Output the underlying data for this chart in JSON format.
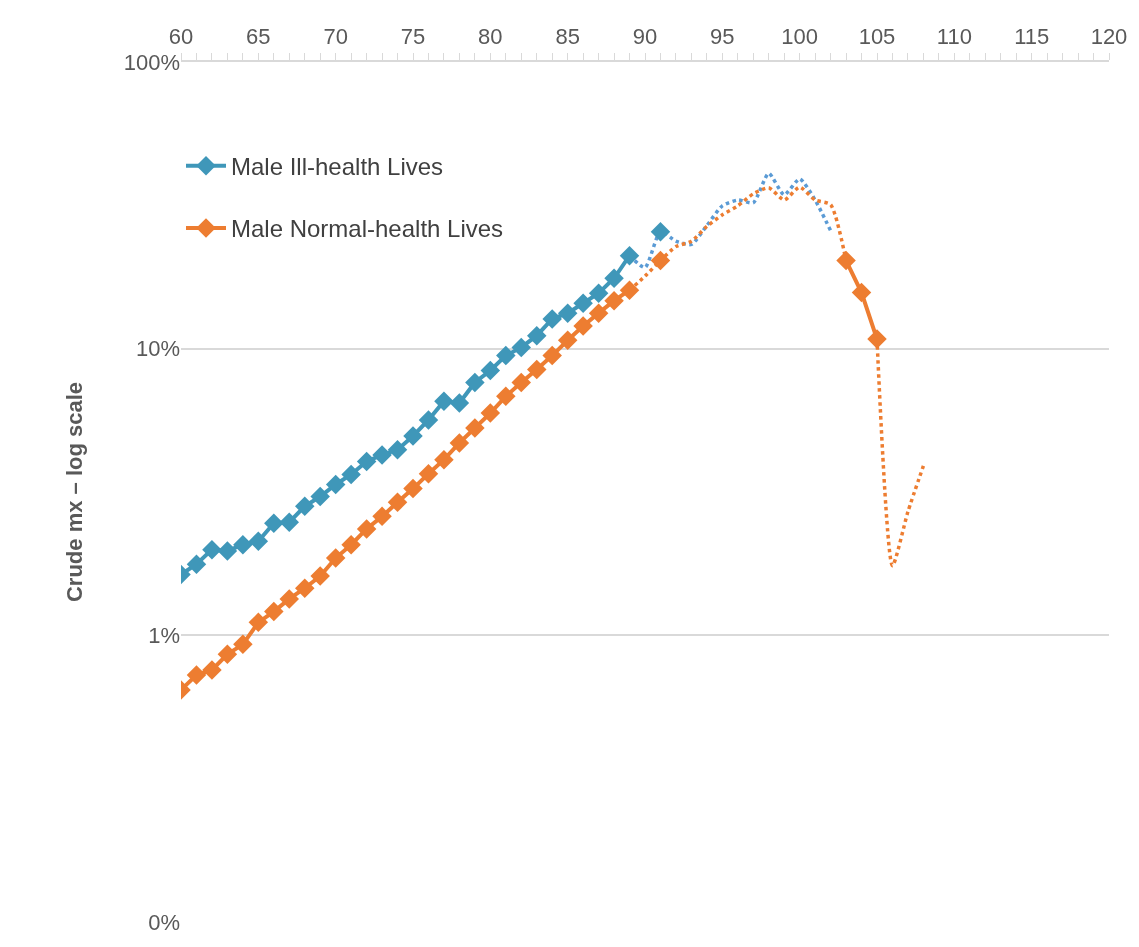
{
  "chart_data": {
    "type": "line",
    "ylabel": "Crude mx – log scale",
    "x": [
      60,
      61,
      62,
      63,
      64,
      65,
      66,
      67,
      68,
      69,
      70,
      71,
      72,
      73,
      74,
      75,
      76,
      77,
      78,
      79,
      80,
      81,
      82,
      83,
      84,
      85,
      86,
      87,
      88,
      89,
      90,
      91,
      92,
      93,
      94,
      95,
      96,
      97,
      98,
      99,
      100,
      101,
      102,
      103,
      104,
      105,
      106,
      107,
      108
    ],
    "series": [
      {
        "name": "Male Ill-health Lives",
        "color": "#3f97b9",
        "marker": "diamond",
        "line_style": "solid",
        "values": [
          1.63,
          1.77,
          1.99,
          1.97,
          2.07,
          2.13,
          2.46,
          2.48,
          2.82,
          3.05,
          3.36,
          3.64,
          4.04,
          4.26,
          4.44,
          4.96,
          5.64,
          6.56,
          6.46,
          7.62,
          8.39,
          9.46,
          10.1,
          11.1,
          12.7,
          13.3,
          14.4,
          15.6,
          17.6,
          21.1,
          null,
          25.6,
          null,
          null,
          null,
          null,
          null,
          null,
          null,
          null,
          null,
          null,
          null,
          null,
          null,
          null,
          null,
          null,
          null
        ]
      },
      {
        "name": "Male Normal-health Lives",
        "color": "#ed7d31",
        "marker": "diamond",
        "line_style": "solid",
        "values": [
          0.645,
          0.727,
          0.757,
          0.859,
          0.93,
          1.11,
          1.21,
          1.34,
          1.46,
          1.61,
          1.86,
          2.07,
          2.35,
          2.6,
          2.91,
          3.25,
          3.66,
          4.1,
          4.69,
          5.29,
          5.96,
          6.82,
          7.62,
          8.46,
          9.46,
          10.7,
          12.0,
          13.3,
          14.7,
          16.0,
          null,
          20.3,
          null,
          null,
          null,
          null,
          null,
          null,
          null,
          null,
          null,
          null,
          null,
          20.3,
          15.7,
          10.8,
          null,
          null,
          null
        ]
      },
      {
        "color": "#5b9bd5",
        "marker": "none",
        "line_style": "dotted",
        "values": [
          null,
          null,
          null,
          null,
          null,
          null,
          null,
          null,
          null,
          null,
          null,
          null,
          null,
          null,
          null,
          null,
          null,
          null,
          null,
          null,
          null,
          null,
          null,
          null,
          null,
          null,
          null,
          null,
          null,
          21.1,
          19.2,
          25.6,
          23.7,
          23.1,
          26.9,
          31.5,
          33.0,
          32.3,
          40.9,
          34.4,
          39.1,
          33.0,
          25.8,
          null,
          null,
          null,
          null,
          null,
          null
        ]
      },
      {
        "color": "#ed7d31",
        "marker": "none",
        "line_style": "dotted",
        "values": [
          null,
          null,
          null,
          null,
          null,
          null,
          null,
          null,
          null,
          null,
          null,
          null,
          null,
          null,
          null,
          null,
          null,
          null,
          null,
          null,
          null,
          null,
          null,
          null,
          null,
          null,
          null,
          null,
          null,
          16.0,
          17.9,
          20.3,
          22.7,
          23.7,
          26.7,
          29.3,
          31.5,
          34.7,
          36.4,
          33.0,
          36.6,
          33.0,
          31.8,
          20.3,
          null,
          10.8,
          1.75,
          2.7,
          3.9
        ]
      }
    ],
    "log": "y",
    "ylim": [
      0.1,
      100
    ],
    "yticks": [
      {
        "value": 0.1,
        "label": "0%"
      },
      {
        "value": 1,
        "label": "1%"
      },
      {
        "value": 10,
        "label": "10%"
      },
      {
        "value": 100,
        "label": "100%"
      }
    ],
    "xlim": [
      60,
      120
    ],
    "xticks": [
      60,
      {
        "value": 61,
        "label": null
      },
      {
        "value": 62,
        "label": null
      },
      {
        "value": 63,
        "label": null
      },
      {
        "value": 64,
        "label": null
      },
      65,
      {
        "value": 66,
        "label": null
      },
      {
        "value": 67,
        "label": null
      },
      {
        "value": 68,
        "label": null
      },
      {
        "value": 69,
        "label": null
      },
      70,
      {
        "value": 71,
        "label": null
      },
      {
        "value": 72,
        "label": null
      },
      {
        "value": 73,
        "label": null
      },
      {
        "value": 74,
        "label": null
      },
      75,
      {
        "value": 76,
        "label": null
      },
      {
        "value": 77,
        "label": null
      },
      {
        "value": 78,
        "label": null
      },
      {
        "value": 79,
        "label": null
      },
      80,
      {
        "value": 81,
        "label": null
      },
      {
        "value": 82,
        "label": null
      },
      {
        "value": 83,
        "label": null
      },
      {
        "value": 84,
        "label": null
      },
      85,
      {
        "value": 86,
        "label": null
      },
      {
        "value": 87,
        "label": null
      },
      {
        "value": 88,
        "label": null
      },
      {
        "value": 89,
        "label": null
      },
      90,
      {
        "value": 91,
        "label": null
      },
      {
        "value": 92,
        "label": null
      },
      {
        "value": 93,
        "label": null
      },
      {
        "value": 94,
        "label": null
      },
      95,
      {
        "value": 96,
        "label": null
      },
      {
        "value": 97,
        "label": null
      },
      {
        "value": 98,
        "label": null
      },
      {
        "value": 99,
        "label": null
      },
      100,
      {
        "value": 101,
        "label": null
      },
      {
        "value": 102,
        "label": null
      },
      {
        "value": 103,
        "label": null
      },
      {
        "value": 104,
        "label": null
      },
      105,
      {
        "value": 106,
        "label": null
      },
      {
        "value": 107,
        "label": null
      },
      {
        "value": 108,
        "label": null
      },
      {
        "value": 109,
        "label": null
      },
      110,
      {
        "value": 111,
        "label": null
      },
      {
        "value": 112,
        "label": null
      },
      {
        "value": 113,
        "label": null
      },
      {
        "value": 114,
        "label": null
      },
      115,
      {
        "value": 116,
        "label": null
      },
      {
        "value": 117,
        "label": null
      },
      {
        "value": 118,
        "label": null
      },
      {
        "value": 119,
        "label": null
      },
      120
    ],
    "grid": "y",
    "legend": "top left"
  }
}
